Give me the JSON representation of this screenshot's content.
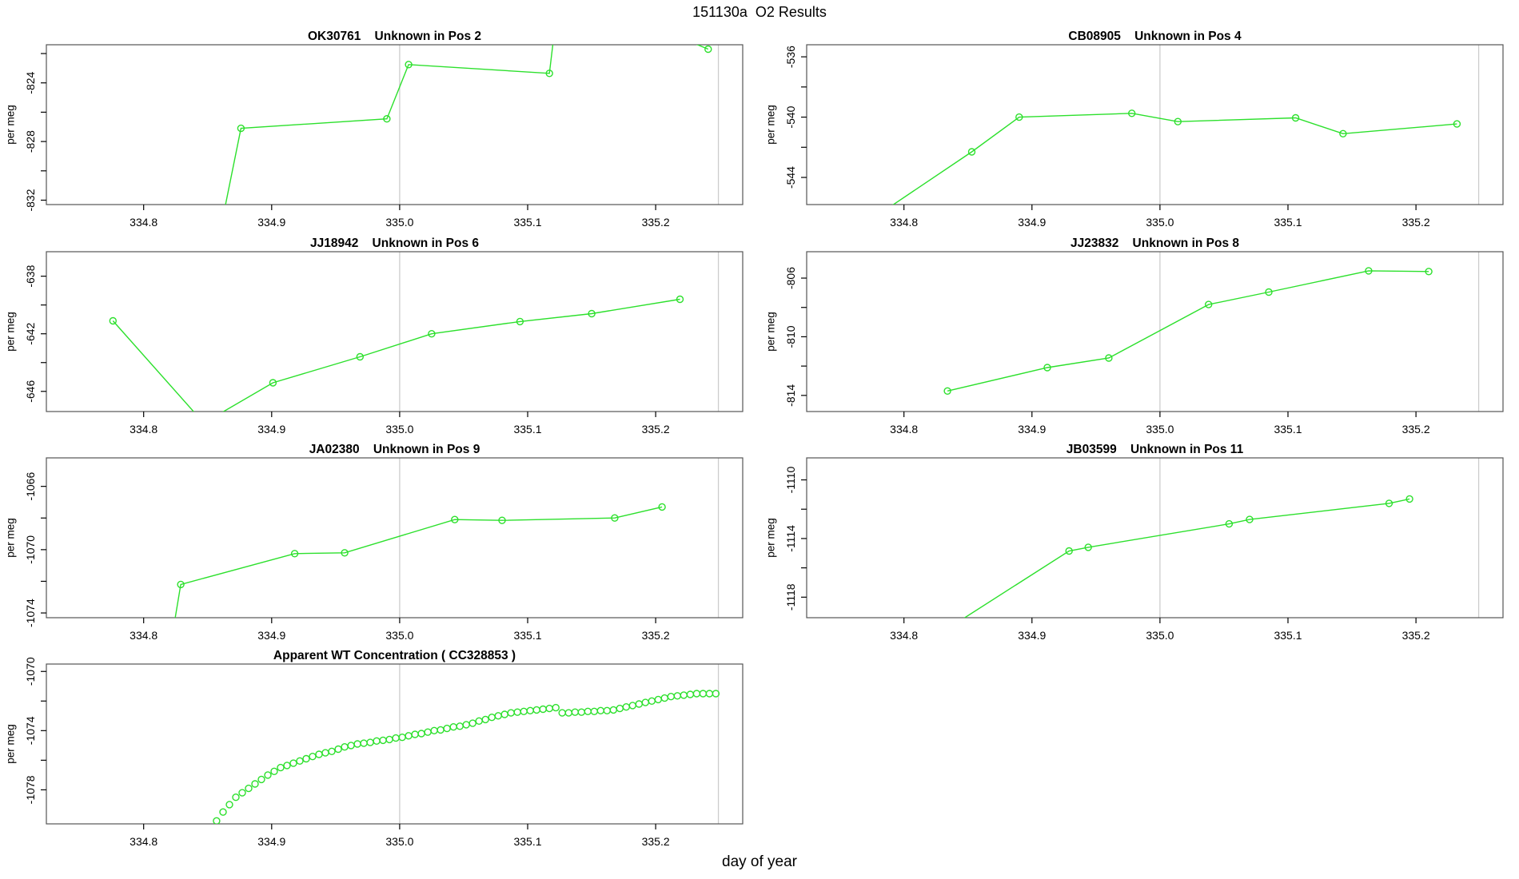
{
  "figure": {
    "title": "151130a  O2 Results",
    "xlabel": "day of year",
    "colors": {
      "series": "#2CE02C",
      "gridline": "#CCCCCC",
      "box": "#555555",
      "tick": "#000000",
      "background": "#FFFFFF"
    },
    "xlim": [
      334.724,
      335.268
    ],
    "xticks": [
      {
        "v": 334.8,
        "label": "334.8"
      },
      {
        "v": 334.9,
        "label": "334.9"
      },
      {
        "v": 335.0,
        "label": "335.0"
      },
      {
        "v": 335.1,
        "label": "335.1"
      },
      {
        "v": 335.2,
        "label": "335.2"
      }
    ],
    "gridlines_x": [
      335.0,
      335.249
    ]
  },
  "chart_data": [
    {
      "id": "OK30761",
      "row": 0,
      "col": 0,
      "type": "line",
      "title": "OK30761    Unknown in Pos 2",
      "ylabel": "per meg",
      "xlabel": "day of year",
      "ylim": [
        -832.3,
        -821.4
      ],
      "yticks": [
        [
          -822,
          null
        ],
        [
          -824,
          "-824"
        ],
        [
          -826,
          null
        ],
        [
          -828,
          "-828"
        ],
        [
          -830,
          null
        ],
        [
          -832,
          "-832"
        ]
      ],
      "x": [
        334.86,
        334.876,
        334.99,
        335.007,
        335.117,
        335.125,
        335.241
      ],
      "y": [
        -834.0,
        -827.1,
        -826.45,
        -822.75,
        -823.35,
        -817.5,
        -821.7
      ]
    },
    {
      "id": "CB08905",
      "row": 0,
      "col": 1,
      "type": "line",
      "title": "CB08905    Unknown in Pos 4",
      "ylabel": "per meg",
      "xlabel": "day of year",
      "ylim": [
        -545.8,
        -535.2
      ],
      "yticks": [
        [
          -536,
          "-536"
        ],
        [
          -538,
          null
        ],
        [
          -540,
          "-540"
        ],
        [
          -542,
          null
        ],
        [
          -544,
          "-544"
        ]
      ],
      "x": [
        334.783,
        334.853,
        334.89,
        334.978,
        335.014,
        335.106,
        335.143,
        335.232
      ],
      "y": [
        -546.3,
        -542.3,
        -540.0,
        -539.75,
        -540.3,
        -540.05,
        -541.1,
        -540.45
      ]
    },
    {
      "id": "JJ18942",
      "row": 1,
      "col": 0,
      "type": "line",
      "title": "JJ18942    Unknown in Pos 6",
      "ylabel": "per meg",
      "xlabel": "day of year",
      "ylim": [
        -647.4,
        -636.3
      ],
      "yticks": [
        [
          -638,
          "-638"
        ],
        [
          -640,
          null
        ],
        [
          -642,
          "-642"
        ],
        [
          -644,
          null
        ],
        [
          -646,
          "-646"
        ]
      ],
      "x": [
        334.776,
        334.847,
        334.901,
        334.969,
        335.025,
        335.094,
        335.15,
        335.219
      ],
      "y": [
        -641.1,
        -648.2,
        -645.4,
        -643.6,
        -642.0,
        -641.15,
        -640.6,
        -639.6
      ]
    },
    {
      "id": "JJ23832",
      "row": 1,
      "col": 1,
      "type": "line",
      "title": "JJ23832    Unknown in Pos 8",
      "ylabel": "per meg",
      "xlabel": "day of year",
      "ylim": [
        -815.1,
        -804.2
      ],
      "yticks": [
        [
          -806,
          "-806"
        ],
        [
          -808,
          null
        ],
        [
          -810,
          "-810"
        ],
        [
          -812,
          null
        ],
        [
          -814,
          "-814"
        ]
      ],
      "x": [
        334.834,
        334.912,
        334.96,
        335.038,
        335.085,
        335.163,
        335.21
      ],
      "y": [
        -813.7,
        -812.1,
        -811.45,
        -807.8,
        -806.95,
        -805.5,
        -805.55
      ]
    },
    {
      "id": "JA02380",
      "row": 2,
      "col": 0,
      "type": "line",
      "title": "JA02380    Unknown in Pos 9",
      "ylabel": "per meg",
      "xlabel": "day of year",
      "ylim": [
        -1074.3,
        -1064.2
      ],
      "yticks": [
        [
          -1066,
          "-1066"
        ],
        [
          -1068,
          null
        ],
        [
          -1070,
          "-1070"
        ],
        [
          -1072,
          null
        ],
        [
          -1074,
          "-1074"
        ]
      ],
      "x": [
        334.822,
        334.829,
        334.918,
        334.957,
        335.043,
        335.08,
        335.168,
        335.205
      ],
      "y": [
        -1075.6,
        -1072.2,
        -1070.25,
        -1070.2,
        -1068.1,
        -1068.15,
        -1068.0,
        -1067.3
      ]
    },
    {
      "id": "JB03599",
      "row": 2,
      "col": 1,
      "type": "line",
      "title": "JB03599    Unknown in Pos 11",
      "ylabel": "per meg",
      "xlabel": "day of year",
      "ylim": [
        -1119.4,
        -1108.5
      ],
      "yticks": [
        [
          -1110,
          "-1110"
        ],
        [
          -1112,
          null
        ],
        [
          -1114,
          "-1114"
        ],
        [
          -1116,
          null
        ],
        [
          -1118,
          "-1118"
        ]
      ],
      "x": [
        334.826,
        334.929,
        334.944,
        335.054,
        335.07,
        335.179,
        335.195
      ],
      "y": [
        -1120.6,
        -1114.85,
        -1114.6,
        -1113.0,
        -1112.7,
        -1111.6,
        -1111.3
      ]
    },
    {
      "id": "CC328853",
      "row": 3,
      "col": 0,
      "type": "scatter",
      "title": "Apparent WT Concentration ( CC328853 )",
      "ylabel": "per meg",
      "xlabel": "day of year",
      "ylim": [
        -1080.3,
        -1069.5
      ],
      "yticks": [
        [
          -1070,
          "-1070"
        ],
        [
          -1072,
          null
        ],
        [
          -1074,
          "-1074"
        ],
        [
          -1076,
          null
        ],
        [
          -1078,
          "-1078"
        ]
      ],
      "x": [
        334.857,
        334.862,
        334.867,
        334.872,
        334.877,
        334.882,
        334.887,
        334.892,
        334.897,
        334.902,
        334.907,
        334.912,
        334.917,
        334.922,
        334.927,
        334.932,
        334.937,
        334.942,
        334.947,
        334.952,
        334.957,
        334.962,
        334.967,
        334.972,
        334.977,
        334.982,
        334.987,
        334.992,
        334.997,
        335.002,
        335.007,
        335.012,
        335.017,
        335.022,
        335.027,
        335.032,
        335.037,
        335.042,
        335.047,
        335.052,
        335.057,
        335.062,
        335.067,
        335.072,
        335.077,
        335.082,
        335.087,
        335.092,
        335.097,
        335.102,
        335.107,
        335.112,
        335.117,
        335.122,
        335.127,
        335.132,
        335.137,
        335.142,
        335.147,
        335.152,
        335.157,
        335.162,
        335.167,
        335.172,
        335.177,
        335.182,
        335.187,
        335.192,
        335.197,
        335.202,
        335.207,
        335.212,
        335.217,
        335.222,
        335.227,
        335.232,
        335.237,
        335.242,
        335.247
      ],
      "y": [
        -1080.1,
        -1079.5,
        -1079.0,
        -1078.5,
        -1078.2,
        -1077.9,
        -1077.6,
        -1077.3,
        -1077.0,
        -1076.75,
        -1076.5,
        -1076.35,
        -1076.2,
        -1076.05,
        -1075.9,
        -1075.75,
        -1075.6,
        -1075.5,
        -1075.4,
        -1075.25,
        -1075.1,
        -1075.0,
        -1074.9,
        -1074.85,
        -1074.8,
        -1074.7,
        -1074.65,
        -1074.6,
        -1074.5,
        -1074.45,
        -1074.35,
        -1074.25,
        -1074.2,
        -1074.1,
        -1074.0,
        -1073.95,
        -1073.85,
        -1073.75,
        -1073.7,
        -1073.6,
        -1073.5,
        -1073.35,
        -1073.25,
        -1073.1,
        -1073.0,
        -1072.9,
        -1072.8,
        -1072.75,
        -1072.7,
        -1072.65,
        -1072.6,
        -1072.55,
        -1072.5,
        -1072.45,
        -1072.8,
        -1072.8,
        -1072.75,
        -1072.75,
        -1072.7,
        -1072.7,
        -1072.65,
        -1072.65,
        -1072.6,
        -1072.5,
        -1072.4,
        -1072.3,
        -1072.2,
        -1072.1,
        -1072.0,
        -1071.9,
        -1071.8,
        -1071.7,
        -1071.65,
        -1071.6,
        -1071.55,
        -1071.5,
        -1071.5,
        -1071.5,
        -1071.5
      ]
    }
  ]
}
